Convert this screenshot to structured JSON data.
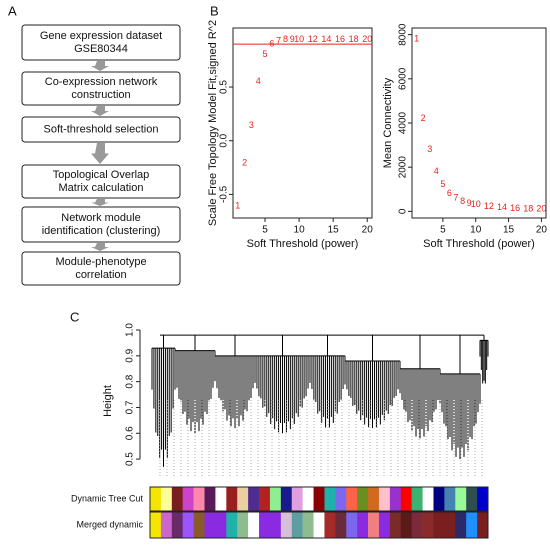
{
  "panels": [
    "A",
    "B",
    "C"
  ],
  "flowchart": {
    "nodes": [
      [
        "Gene expression dataset",
        "GSE80344"
      ],
      [
        "Co-expression network",
        "construction"
      ],
      [
        "Soft-threshold selection"
      ],
      [
        "Topological Overlap",
        "Matrix calculation"
      ],
      [
        "Network module",
        "identification (clustering)"
      ],
      [
        "Module-phenotype",
        "correlation"
      ]
    ]
  },
  "chart_data": [
    {
      "type": "text_scatter",
      "xlabel": "Soft Threshold (power)",
      "ylabel": "Scale Free Topology Model Fit,signed R^2",
      "x": [
        1,
        2,
        3,
        4,
        5,
        6,
        7,
        8,
        9,
        10,
        12,
        14,
        16,
        18,
        20
      ],
      "values": [
        -0.61,
        -0.21,
        0.14,
        0.55,
        0.8,
        0.9,
        0.93,
        0.94,
        0.94,
        0.94,
        0.94,
        0.94,
        0.94,
        0.94,
        0.94
      ],
      "color": "#e8231d",
      "hline": 0.9,
      "hline_color": "#e8231d",
      "xlim": [
        0.3,
        20.7
      ],
      "ylim": [
        -0.72,
        1.05
      ],
      "xticks": [
        5,
        10,
        15,
        20
      ],
      "yticks": [
        {
          "value": -0.5,
          "label": "-0.5"
        },
        {
          "value": 0,
          "label": "0.0"
        },
        0.5
      ]
    },
    {
      "type": "text_scatter",
      "xlabel": "Soft Threshold (power)",
      "ylabel": "Mean Connectivity",
      "x": [
        1,
        2,
        3,
        4,
        5,
        6,
        7,
        8,
        9,
        10,
        12,
        14,
        16,
        18,
        20
      ],
      "values": [
        7800,
        4200,
        2800,
        1800,
        1200,
        800,
        600,
        450,
        350,
        300,
        220,
        170,
        130,
        110,
        100
      ],
      "color": "#e8231d",
      "xlim": [
        0.3,
        20.7
      ],
      "ylim": [
        -300,
        8300
      ],
      "xticks": [
        5,
        10,
        15,
        20
      ],
      "yticks": [
        0,
        2000,
        4000,
        6000,
        8000
      ]
    },
    {
      "type": "dendrogram",
      "ylabel": "Height",
      "ylim": [
        0.45,
        1.0
      ],
      "yticks": [
        0.5,
        0.6,
        0.7,
        0.8,
        0.9,
        {
          "value": 1,
          "label": "1.0"
        }
      ],
      "root": 0.98,
      "tops": [
        0.93,
        0.92,
        0.9,
        0.9,
        0.9,
        0.88,
        0.85,
        0.83,
        0.96
      ],
      "bottoms": [
        0.47,
        0.6,
        0.62,
        0.6,
        0.62,
        0.62,
        0.58,
        0.5,
        0.78
      ],
      "color_rows": [
        {
          "name": "Dynamic Tree Cut",
          "colors": [
            "#f5e500",
            "#ffff99",
            "#7a1f1f",
            "#cc44cc",
            "#ff88aa",
            "#5a1a5a",
            "#ffffff",
            "#9a2020",
            "#e8d0a0",
            "#4f2c8f",
            "#b22222",
            "#90ee90",
            "#1a1a8f",
            "#e0a0e0",
            "#ffffff",
            "#8b0000",
            "#20b2aa",
            "#7b68ee",
            "#ff6347",
            "#6b8e23",
            "#d2691e",
            "#ffc0cb",
            "#9932cc",
            "#ff0000",
            "#3cb371",
            "#ffffff",
            "#000080",
            "#4682b4",
            "#98fb98",
            "#2f4f4f",
            "#0000cd"
          ]
        },
        {
          "name": "Merged dynamic",
          "colors": [
            "#f5e500",
            "#cc66cc",
            "#6a2a6a",
            "#9a55ff",
            "#8b5a2b",
            "#8a2be2",
            "#8a2be2",
            "#20b2aa",
            "#8fbc8f",
            "#ffffff",
            "#8a2be2",
            "#8a2be2",
            "#d8bfd8",
            "#5f9ea0",
            "#8fbc8f",
            "#ffffff",
            "#a52a2a",
            "#6b2a3a",
            "#7b68ee",
            "#8a2be2",
            "#f08080",
            "#8a2be2",
            "#7b2a2a",
            "#5a1a1a",
            "#7b2a3a",
            "#8b2a2a",
            "#7a1f1f",
            "#7a1f1f",
            "#2a2a6a",
            "#1e90ff",
            "#7a1f1f"
          ]
        }
      ]
    }
  ]
}
